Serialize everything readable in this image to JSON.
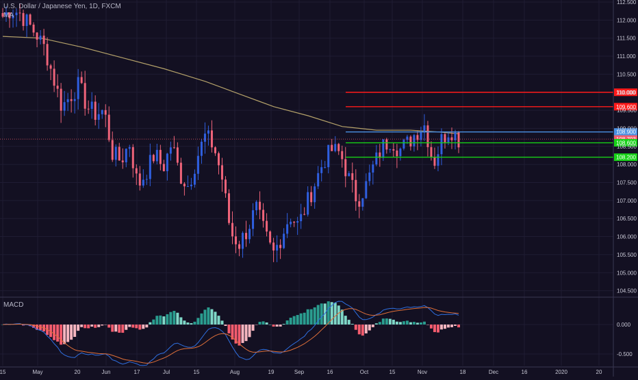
{
  "header": {
    "symbol_title": "U.S. Dollar / Japanese Yen, 1D, FXCM",
    "ma_label": "MA",
    "macd_label": "MACD"
  },
  "colors": {
    "background": "#131022",
    "grid": "#1f1c33",
    "candle_up": "#2f5fe0",
    "candle_down": "#f0647a",
    "ma_line": "#b5a26a",
    "macd_line": "#2f6fe0",
    "signal_line": "#e0703a",
    "hist_pos_strong": "#7fd8c8",
    "hist_pos_weak": "#2a9d8f",
    "hist_neg_strong": "#f35c6e",
    "hist_neg_weak": "#f6b5bf",
    "axis_text": "#c9c9d6",
    "resistance": "#ff1a1a",
    "pivot": "#4a90e2",
    "support": "#17d117",
    "current_price_bg": "#f05d6c"
  },
  "chart_data": [
    {
      "type": "candlestick",
      "title": "U.S. Dollar / Japanese Yen, 1D, FXCM",
      "ylim": [
        104.25,
        112.55
      ],
      "y_ticks": [
        "112.500",
        "112.000",
        "111.500",
        "111.000",
        "110.500",
        "110.000",
        "109.500",
        "109.000",
        "108.500",
        "108.000",
        "107.500",
        "107.000",
        "106.500",
        "106.000",
        "105.500",
        "105.000",
        "104.500"
      ],
      "x_ticks": [
        "15",
        "May",
        "20",
        "Jun",
        "17",
        "Jul",
        "15",
        "Aug",
        "19",
        "Sep",
        "16",
        "Oct",
        "15",
        "Nov",
        "18",
        "Dec",
        "16",
        "2020",
        "20"
      ],
      "overlays": {
        "moving_average_label": "MA"
      },
      "horizontal_levels": [
        {
          "value": "110.000",
          "role": "resistance"
        },
        {
          "value": "109.600",
          "role": "resistance"
        },
        {
          "value": "108.900",
          "role": "pivot"
        },
        {
          "value": "108.703",
          "role": "current_price"
        },
        {
          "value": "108.600",
          "role": "support"
        },
        {
          "value": "108.200",
          "role": "support"
        }
      ],
      "series_close": [
        112.1,
        112.3,
        112.2,
        111.9,
        111.6,
        111.2,
        110.4,
        109.6,
        109.9,
        110.2,
        109.6,
        109.4,
        109.5,
        108.3,
        108.1,
        108.6,
        107.4,
        107.8,
        108.3,
        107.9,
        108.6,
        107.7,
        107.4,
        108.2,
        108.8,
        108.5,
        107.6,
        106.1,
        105.8,
        106.2,
        106.8,
        106.1,
        105.5,
        106.0,
        106.6,
        106.3,
        106.9,
        107.5,
        108.1,
        108.4,
        108.3,
        107.6,
        107.0,
        107.4,
        108.0,
        108.5,
        108.7,
        108.4,
        108.6,
        108.9,
        109.1,
        108.0,
        108.7,
        109.0,
        108.7
      ]
    },
    {
      "type": "macd",
      "title": "MACD",
      "ylim": [
        -0.82,
        0.62
      ],
      "y_ticks": [
        "0.000",
        "-0.500"
      ]
    }
  ]
}
